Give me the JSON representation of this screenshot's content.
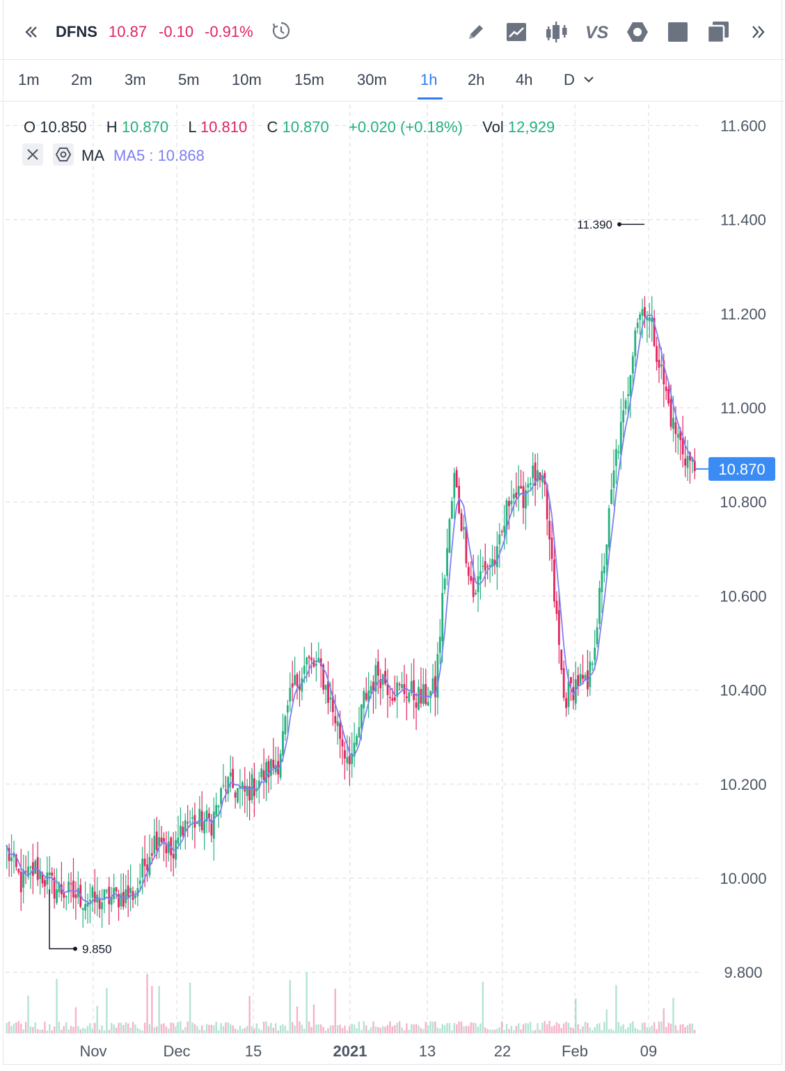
{
  "header": {
    "collapse_icon": "chevron-double-left-icon",
    "symbol": "DFNS",
    "last_price": "10.87",
    "change": "-0.10",
    "change_pct": "-0.91%",
    "history_icon": "clock-history-icon",
    "toolbar": [
      {
        "name": "draw-button",
        "icon": "pencil-icon"
      },
      {
        "name": "indicator-button",
        "icon": "trend-chart-icon"
      },
      {
        "name": "chart-type-button",
        "icon": "candlestick-icon"
      },
      {
        "name": "compare-button",
        "icon": "vs-icon"
      },
      {
        "name": "settings-button",
        "icon": "hexagon-gear-icon"
      },
      {
        "name": "fullscreen-button",
        "icon": "square-icon"
      },
      {
        "name": "layout-button",
        "icon": "copy-windows-icon"
      },
      {
        "name": "expand-button",
        "icon": "chevron-double-right-icon"
      }
    ]
  },
  "intervals": {
    "items": [
      "1m",
      "2m",
      "3m",
      "5m",
      "10m",
      "15m",
      "30m",
      "1h",
      "2h",
      "4h",
      "D"
    ],
    "active": "1h",
    "dropdown_icon": "chevron-down-icon"
  },
  "legend": {
    "o_label": "O",
    "o_value": "10.850",
    "h_label": "H",
    "h_value": "10.870",
    "l_label": "L",
    "l_value": "10.810",
    "c_label": "C",
    "c_value": "10.870",
    "change": "+0.020 (+0.18%)",
    "vol_label": "Vol",
    "vol_value": "12,929"
  },
  "indicator": {
    "label": "MA",
    "value": "MA5 : 10.868",
    "remove_icon": "close-icon",
    "settings_icon": "hexagon-gear-icon"
  },
  "colors": {
    "up": "#22b07d",
    "down": "#e0245e",
    "ma": "#7c7ff2",
    "accent": "#2f7bf5",
    "price_tag": "#3b8bf5"
  },
  "chart_data": {
    "type": "candlestick",
    "y_ticks": [
      "11.600",
      "11.400",
      "11.200",
      "11.000",
      "10.800",
      "10.600",
      "10.400",
      "10.200",
      "10.000",
      "9.800"
    ],
    "ylim": [
      9.7,
      11.65
    ],
    "x_ticks": [
      "Nov",
      "Dec",
      "15",
      "2021",
      "13",
      "22",
      "Feb",
      "09"
    ],
    "current_price_tag": "10.870",
    "high_marker": "11.390",
    "low_marker": "9.850",
    "grid": true,
    "series_ma_name": "MA5",
    "anchors": [
      {
        "i": 0,
        "v": 10.06
      },
      {
        "i": 6,
        "v": 9.99
      },
      {
        "i": 12,
        "v": 10.02
      },
      {
        "i": 20,
        "v": 9.98
      },
      {
        "i": 30,
        "v": 9.96
      },
      {
        "i": 38,
        "v": 9.95
      },
      {
        "i": 46,
        "v": 9.96
      },
      {
        "i": 54,
        "v": 9.97
      },
      {
        "i": 60,
        "v": 10.06
      },
      {
        "i": 64,
        "v": 10.1
      },
      {
        "i": 70,
        "v": 10.04
      },
      {
        "i": 74,
        "v": 10.12
      },
      {
        "i": 80,
        "v": 10.12
      },
      {
        "i": 86,
        "v": 10.12
      },
      {
        "i": 92,
        "v": 10.2
      },
      {
        "i": 100,
        "v": 10.18
      },
      {
        "i": 108,
        "v": 10.22
      },
      {
        "i": 114,
        "v": 10.25
      },
      {
        "i": 120,
        "v": 10.4
      },
      {
        "i": 126,
        "v": 10.46
      },
      {
        "i": 132,
        "v": 10.44
      },
      {
        "i": 138,
        "v": 10.34
      },
      {
        "i": 142,
        "v": 10.27
      },
      {
        "i": 146,
        "v": 10.26
      },
      {
        "i": 150,
        "v": 10.38
      },
      {
        "i": 156,
        "v": 10.44
      },
      {
        "i": 162,
        "v": 10.4
      },
      {
        "i": 168,
        "v": 10.4
      },
      {
        "i": 174,
        "v": 10.38
      },
      {
        "i": 180,
        "v": 10.4
      },
      {
        "i": 184,
        "v": 10.65
      },
      {
        "i": 188,
        "v": 10.85
      },
      {
        "i": 192,
        "v": 10.73
      },
      {
        "i": 196,
        "v": 10.6
      },
      {
        "i": 200,
        "v": 10.66
      },
      {
        "i": 206,
        "v": 10.68
      },
      {
        "i": 212,
        "v": 10.83
      },
      {
        "i": 216,
        "v": 10.8
      },
      {
        "i": 220,
        "v": 10.86
      },
      {
        "i": 226,
        "v": 10.82
      },
      {
        "i": 230,
        "v": 10.6
      },
      {
        "i": 234,
        "v": 10.38
      },
      {
        "i": 240,
        "v": 10.42
      },
      {
        "i": 244,
        "v": 10.4
      },
      {
        "i": 248,
        "v": 10.55
      },
      {
        "i": 252,
        "v": 10.72
      },
      {
        "i": 256,
        "v": 10.9
      },
      {
        "i": 260,
        "v": 11.0
      },
      {
        "i": 264,
        "v": 11.18
      },
      {
        "i": 268,
        "v": 11.22
      },
      {
        "i": 272,
        "v": 11.15
      },
      {
        "i": 276,
        "v": 11.05
      },
      {
        "i": 280,
        "v": 10.96
      },
      {
        "i": 285,
        "v": 10.9
      },
      {
        "i": 289,
        "v": 10.87
      }
    ]
  }
}
